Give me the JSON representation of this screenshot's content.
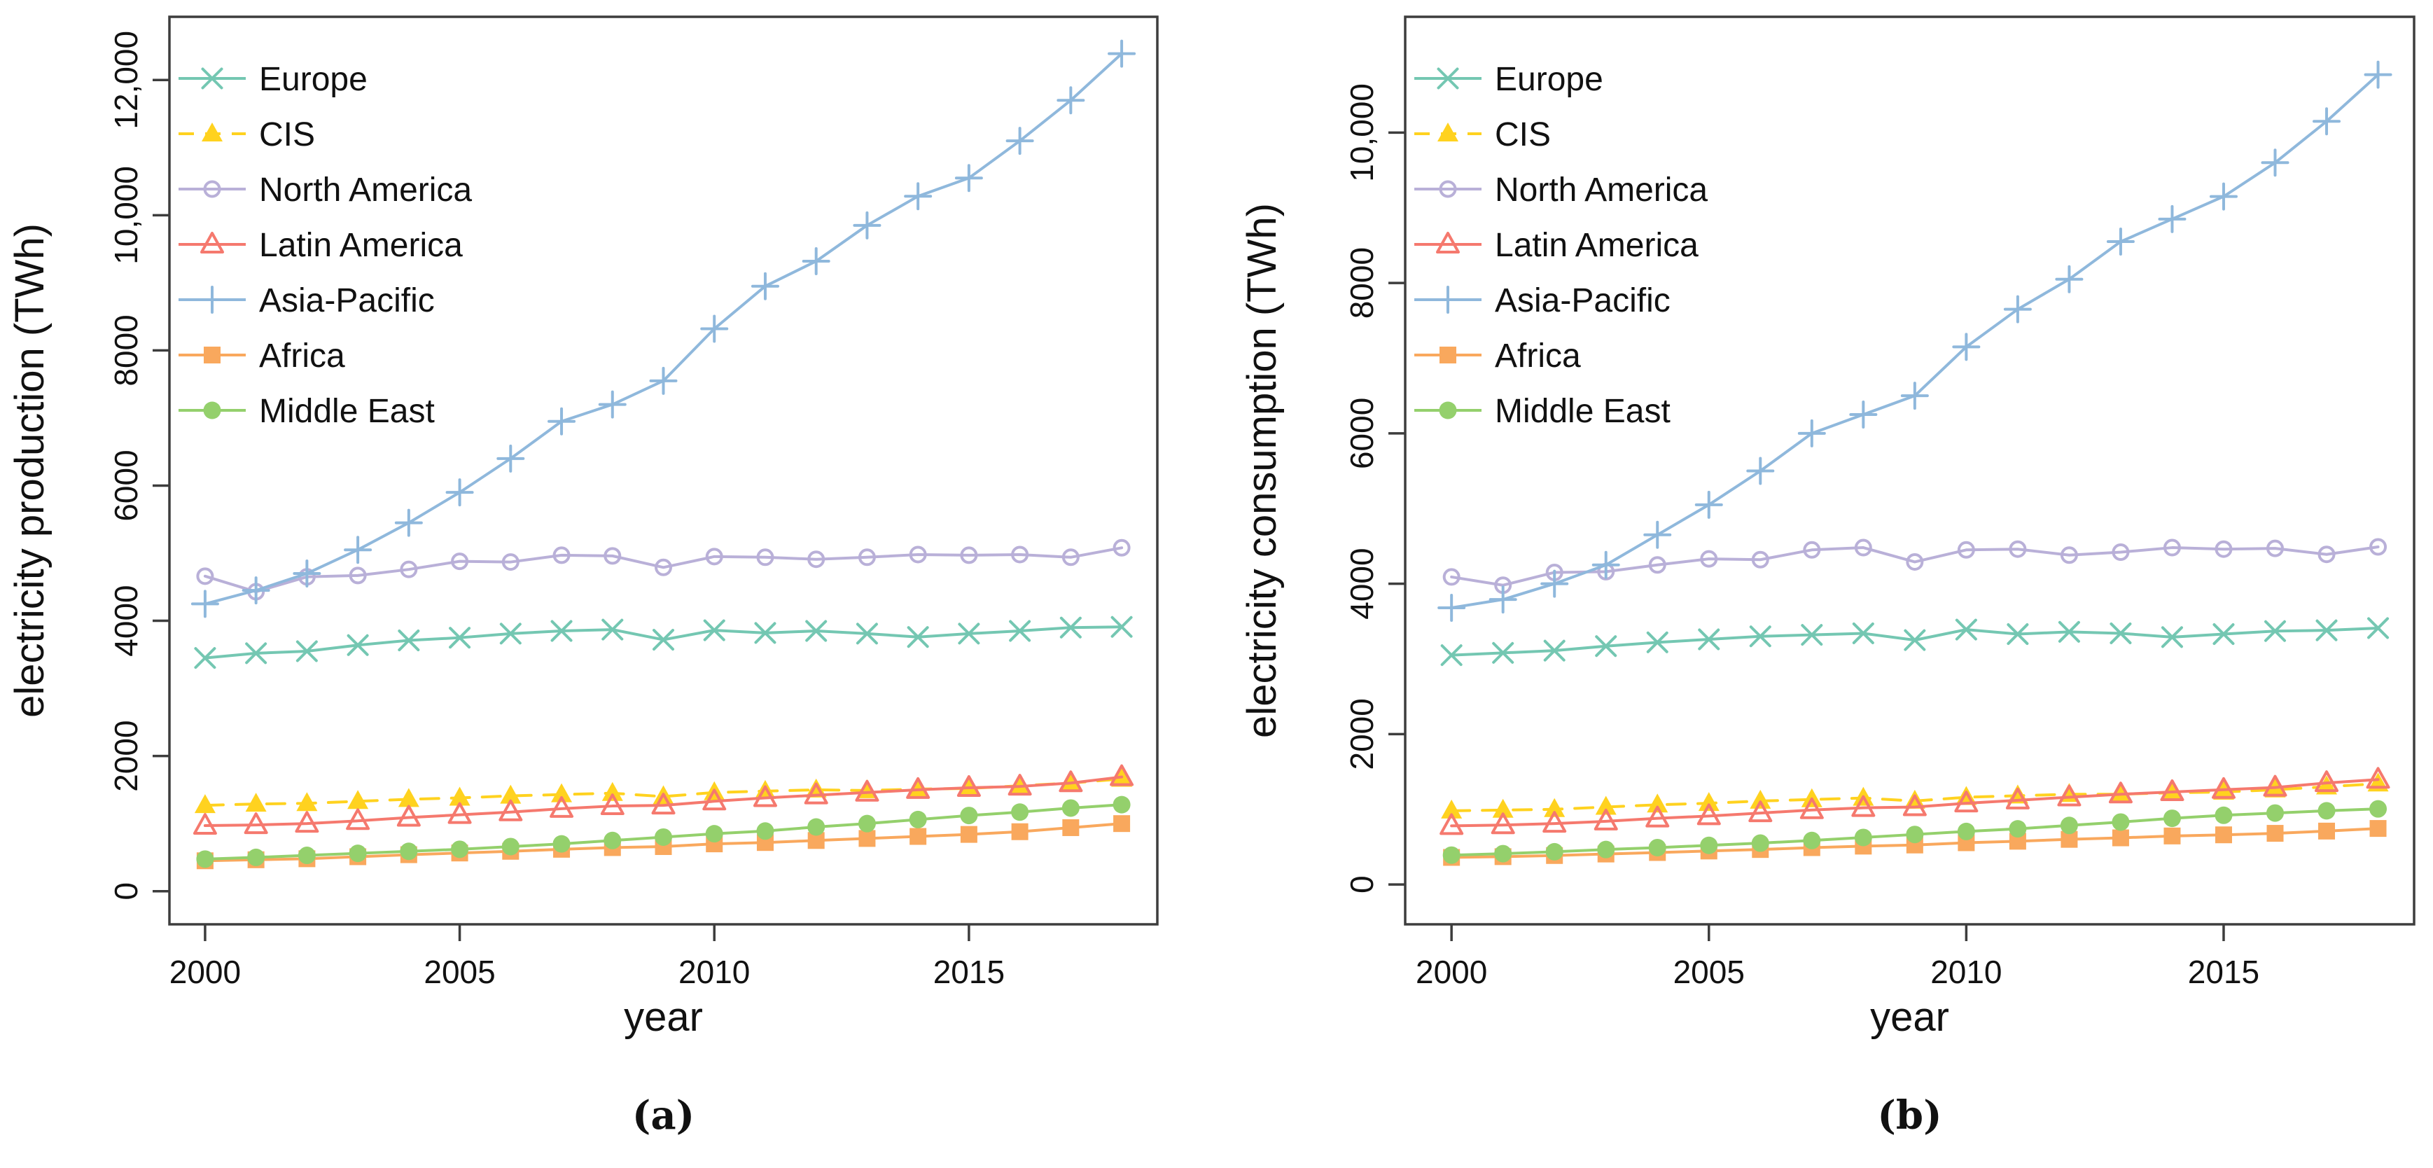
{
  "figure": {
    "captions": {
      "a": "(a)",
      "b": "(b)"
    },
    "axis_color": "#3d3d3d",
    "text_color": "#111111"
  },
  "chart_data": [
    {
      "type": "line",
      "caption": "(a)",
      "xlabel": "year",
      "ylabel": "electricity production (TWh)",
      "x": [
        2000,
        2001,
        2002,
        2003,
        2004,
        2005,
        2006,
        2007,
        2008,
        2009,
        2010,
        2011,
        2012,
        2013,
        2014,
        2015,
        2016,
        2017,
        2018
      ],
      "xlim": [
        1999.3,
        2018.7
      ],
      "ylim": [
        -490,
        12935
      ],
      "xticks": {
        "values": [
          2000,
          2005,
          2010,
          2015
        ],
        "labels": [
          "2000",
          "2005",
          "2010",
          "2015"
        ]
      },
      "yticks": {
        "values": [
          0,
          2000,
          4000,
          6000,
          8000,
          10000,
          12000
        ],
        "labels": [
          "0",
          "2000",
          "4000",
          "6000",
          "8000",
          "10,000",
          "12,000"
        ]
      },
      "grid": false,
      "legend_position": "top-left-inside",
      "series": [
        {
          "name": "Europe",
          "color": "#74c7b2",
          "marker": "x",
          "dash": false,
          "values": [
            3450,
            3520,
            3550,
            3640,
            3710,
            3750,
            3810,
            3850,
            3870,
            3720,
            3860,
            3820,
            3850,
            3810,
            3760,
            3810,
            3850,
            3900,
            3910
          ]
        },
        {
          "name": "CIS",
          "color": "#ffd21f",
          "marker": "triangle-filled",
          "dash": true,
          "values": [
            1270,
            1290,
            1300,
            1330,
            1360,
            1380,
            1410,
            1430,
            1450,
            1400,
            1460,
            1480,
            1500,
            1490,
            1510,
            1520,
            1560,
            1600,
            1660
          ]
        },
        {
          "name": "North America",
          "color": "#b9b0d8",
          "marker": "circle-open",
          "dash": false,
          "values": [
            4660,
            4430,
            4650,
            4670,
            4760,
            4880,
            4870,
            4970,
            4960,
            4790,
            4950,
            4940,
            4910,
            4940,
            4980,
            4970,
            4980,
            4940,
            5080
          ]
        },
        {
          "name": "Latin America",
          "color": "#f5796e",
          "marker": "triangle-open",
          "dash": false,
          "values": [
            970,
            980,
            1000,
            1040,
            1090,
            1130,
            1170,
            1220,
            1260,
            1270,
            1330,
            1380,
            1420,
            1460,
            1500,
            1530,
            1550,
            1600,
            1690
          ]
        },
        {
          "name": "Asia-Pacific",
          "color": "#8fb8dc",
          "marker": "plus",
          "dash": false,
          "values": [
            4250,
            4450,
            4700,
            5050,
            5450,
            5900,
            6400,
            6950,
            7200,
            7550,
            8320,
            8950,
            9320,
            9850,
            10280,
            10550,
            11100,
            11700,
            12390
          ]
        },
        {
          "name": "Africa",
          "color": "#f9a85d",
          "marker": "square-filled",
          "dash": false,
          "values": [
            450,
            465,
            480,
            510,
            540,
            565,
            590,
            620,
            645,
            660,
            700,
            720,
            750,
            780,
            810,
            840,
            880,
            940,
            1000
          ]
        },
        {
          "name": "Middle East",
          "color": "#94d06c",
          "marker": "circle-filled",
          "dash": false,
          "values": [
            475,
            500,
            530,
            560,
            590,
            620,
            660,
            700,
            750,
            800,
            850,
            890,
            950,
            1000,
            1060,
            1120,
            1170,
            1230,
            1280
          ]
        }
      ]
    },
    {
      "type": "line",
      "caption": "(b)",
      "xlabel": "year",
      "ylabel": "electricity consumption (TWh)",
      "x": [
        2000,
        2001,
        2002,
        2003,
        2004,
        2005,
        2006,
        2007,
        2008,
        2009,
        2010,
        2011,
        2012,
        2013,
        2014,
        2015,
        2016,
        2017,
        2018
      ],
      "xlim": [
        1999.1,
        2018.7
      ],
      "ylim": [
        -530,
        11540
      ],
      "xticks": {
        "values": [
          2000,
          2005,
          2010,
          2015
        ],
        "labels": [
          "2000",
          "2005",
          "2010",
          "2015"
        ]
      },
      "yticks": {
        "values": [
          0,
          2000,
          4000,
          6000,
          8000,
          10000
        ],
        "labels": [
          "0",
          "2000",
          "4000",
          "6000",
          "8000",
          "10,000"
        ]
      },
      "grid": false,
      "legend_position": "top-left-inside",
      "series": [
        {
          "name": "Europe",
          "color": "#74c7b2",
          "marker": "x",
          "dash": false,
          "values": [
            3050,
            3080,
            3110,
            3170,
            3220,
            3260,
            3300,
            3320,
            3340,
            3250,
            3390,
            3330,
            3360,
            3340,
            3290,
            3330,
            3370,
            3380,
            3410
          ]
        },
        {
          "name": "CIS",
          "color": "#ffd21f",
          "marker": "triangle-filled",
          "dash": true,
          "values": [
            980,
            990,
            1000,
            1030,
            1060,
            1080,
            1110,
            1130,
            1150,
            1110,
            1160,
            1180,
            1200,
            1200,
            1220,
            1230,
            1260,
            1300,
            1340
          ]
        },
        {
          "name": "North America",
          "color": "#b9b0d8",
          "marker": "circle-open",
          "dash": false,
          "values": [
            4090,
            3980,
            4150,
            4160,
            4250,
            4330,
            4320,
            4450,
            4480,
            4290,
            4450,
            4460,
            4380,
            4420,
            4480,
            4460,
            4470,
            4390,
            4490
          ]
        },
        {
          "name": "Latin America",
          "color": "#f5796e",
          "marker": "triangle-open",
          "dash": false,
          "values": [
            780,
            790,
            810,
            840,
            880,
            910,
            950,
            990,
            1020,
            1030,
            1080,
            1120,
            1160,
            1200,
            1230,
            1260,
            1290,
            1350,
            1395
          ]
        },
        {
          "name": "Asia-Pacific",
          "color": "#8fb8dc",
          "marker": "plus",
          "dash": false,
          "values": [
            3680,
            3790,
            4000,
            4250,
            4650,
            5050,
            5500,
            6000,
            6250,
            6500,
            7150,
            7650,
            8050,
            8550,
            8850,
            9150,
            9600,
            10150,
            10770
          ]
        },
        {
          "name": "Africa",
          "color": "#f9a85d",
          "marker": "square-filled",
          "dash": false,
          "values": [
            360,
            370,
            385,
            405,
            425,
            445,
            465,
            490,
            510,
            525,
            555,
            575,
            600,
            620,
            645,
            660,
            680,
            710,
            745
          ]
        },
        {
          "name": "Middle East",
          "color": "#94d06c",
          "marker": "circle-filled",
          "dash": false,
          "values": [
            390,
            410,
            435,
            465,
            490,
            520,
            550,
            585,
            625,
            665,
            705,
            740,
            785,
            830,
            880,
            920,
            950,
            980,
            1005
          ]
        }
      ]
    }
  ]
}
